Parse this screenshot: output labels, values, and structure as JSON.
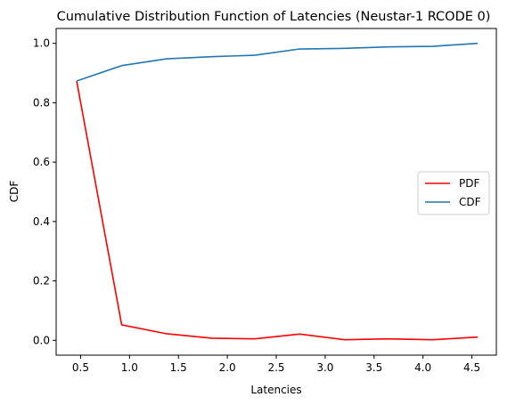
{
  "chart_data": {
    "type": "line",
    "title": "Cumulative Distribution Function of Latencies (Neustar-1 RCODE 0)",
    "xlabel": "Latencies",
    "ylabel": "CDF",
    "xlim": [
      0.25,
      4.75
    ],
    "ylim": [
      -0.05,
      1.05
    ],
    "xticks": [
      0.5,
      1.0,
      1.5,
      2.0,
      2.5,
      3.0,
      3.5,
      4.0,
      4.5
    ],
    "xtick_labels": [
      "0.5",
      "1.0",
      "1.5",
      "2.0",
      "2.5",
      "3.0",
      "3.5",
      "4.0",
      "4.5"
    ],
    "yticks": [
      0.0,
      0.2,
      0.4,
      0.6,
      0.8,
      1.0
    ],
    "ytick_labels": [
      "0.0",
      "0.2",
      "0.4",
      "0.6",
      "0.8",
      "1.0"
    ],
    "grid": false,
    "legend_position": "center-right",
    "x": [
      0.46,
      0.92,
      1.38,
      1.84,
      2.28,
      2.74,
      3.2,
      3.64,
      4.1,
      4.56
    ],
    "series": [
      {
        "name": "PDF",
        "color": "#ff0000",
        "values": [
          0.873,
          0.052,
          0.022,
          0.007,
          0.005,
          0.021,
          0.002,
          0.005,
          0.002,
          0.011
        ]
      },
      {
        "name": "CDF",
        "color": "#1f77b4",
        "values": [
          0.873,
          0.925,
          0.948,
          0.955,
          0.96,
          0.981,
          0.983,
          0.988,
          0.99,
          1.0
        ]
      }
    ]
  }
}
